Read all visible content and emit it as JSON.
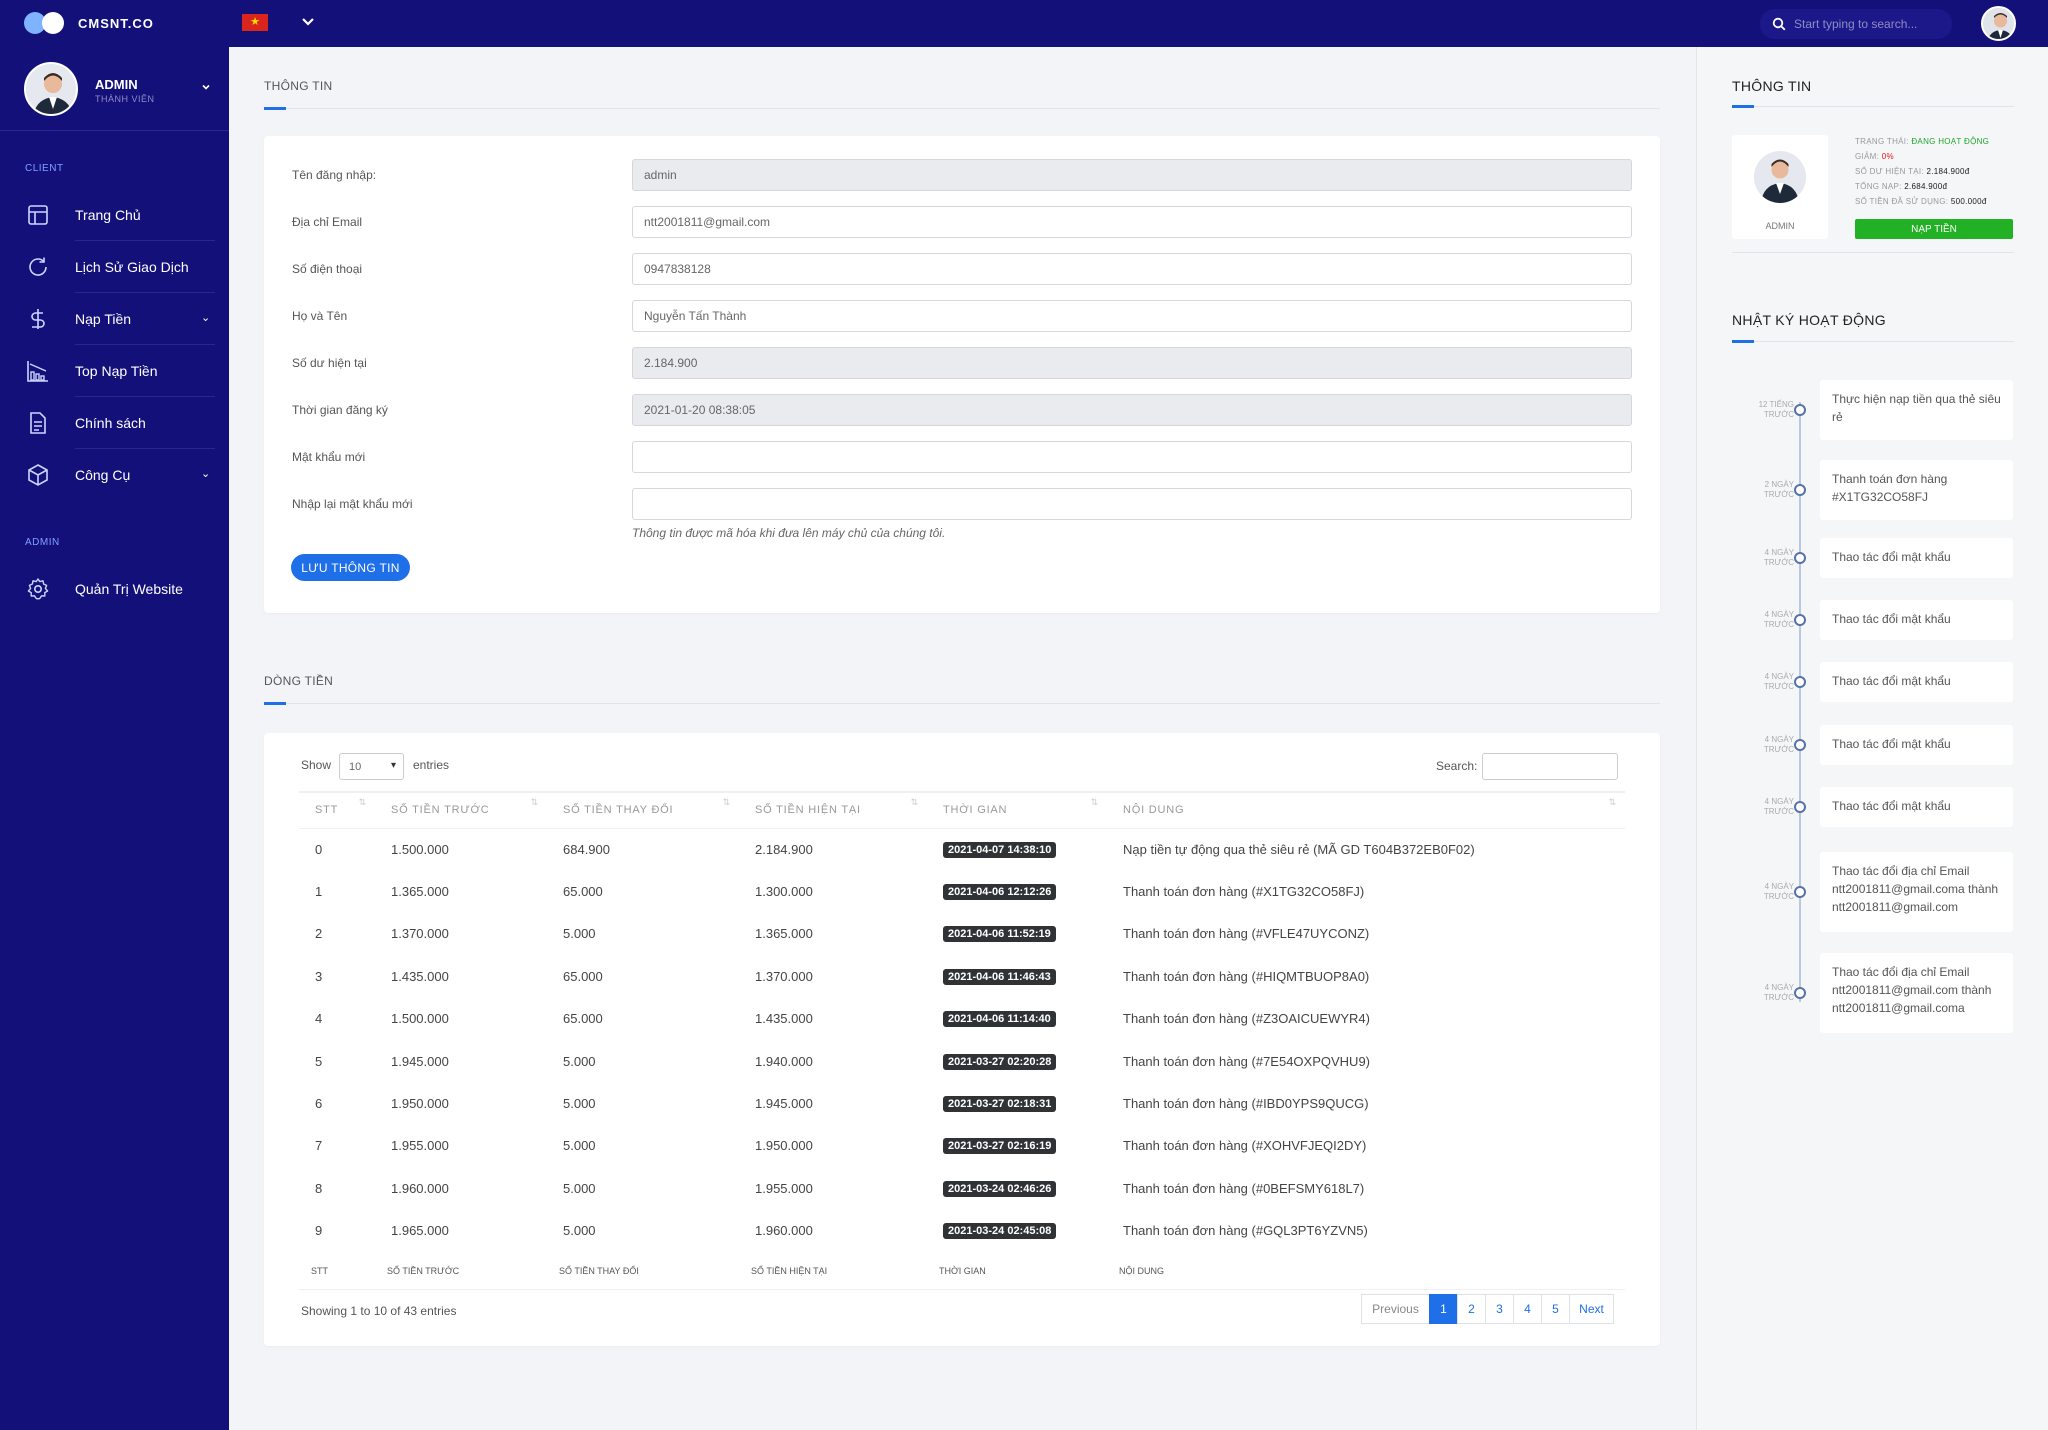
{
  "brand": {
    "name": "CMSNT.CO"
  },
  "topbar": {
    "flag_icon": "vietnam-flag-icon",
    "search_placeholder": "Start typing to search..."
  },
  "sidebar": {
    "user": {
      "name": "ADMIN",
      "role": "THÀNH VIÊN"
    },
    "section_client": "CLIENT",
    "section_admin": "ADMIN",
    "items": [
      {
        "label": "Trang Chủ",
        "icon": "layout-icon"
      },
      {
        "label": "Lịch Sử Giao Dịch",
        "icon": "refresh-icon"
      },
      {
        "label": "Nạp Tiền",
        "icon": "dollar-icon"
      },
      {
        "label": "Top Nạp Tiền",
        "icon": "bar-chart-icon"
      },
      {
        "label": "Chính sách",
        "icon": "document-icon"
      },
      {
        "label": "Công Cụ",
        "icon": "box-icon"
      },
      {
        "label": "Quản Trị Website",
        "icon": "gear-icon"
      }
    ]
  },
  "info": {
    "title": "THÔNG TIN",
    "fields": [
      {
        "label": "Tên đăng nhập:",
        "value": "admin"
      },
      {
        "label": "Địa chỉ Email",
        "value": "ntt2001811@gmail.com"
      },
      {
        "label": "Số điện thoại",
        "value": "0947838128"
      },
      {
        "label": "Họ và Tên",
        "value": "Nguyễn Tấn Thành"
      },
      {
        "label": "Số dư hiện tại",
        "value": "2.184.900"
      },
      {
        "label": "Thời gian đăng ký",
        "value": "2021-01-20 08:38:05"
      },
      {
        "label": "Mật khẩu mới",
        "value": ""
      },
      {
        "label": "Nhập lại mật khẩu mới",
        "value": ""
      }
    ],
    "note": "Thông tin được mã hóa khi đưa lên máy chủ của chúng tôi.",
    "save_label": "LƯU THÔNG TIN"
  },
  "cashflow": {
    "title": "DÒNG TIỀN",
    "show_label": "Show",
    "entries_label": "entries",
    "page_size": "10",
    "search_label": "Search:",
    "headers": [
      "STT",
      "SỐ TIỀN TRƯỚC",
      "SỐ TIỀN THAY ĐỔI",
      "SỐ TIỀN HIỆN TẠI",
      "THỜI GIAN",
      "NỘI DUNG"
    ],
    "rows": [
      {
        "stt": "0",
        "before": "1.500.000",
        "change": "684.900",
        "after": "2.184.900",
        "time": "2021-04-07 14:38:10",
        "content": "Nạp tiền tự động qua thẻ siêu rẻ (MÃ GD T604B372EB0F02)",
        "change_color": "red"
      },
      {
        "stt": "1",
        "before": "1.365.000",
        "change": "65.000",
        "after": "1.300.000",
        "time": "2021-04-06 12:12:26",
        "content": "Thanh toán đơn hàng (#X1TG32CO58FJ)",
        "change_color": "red"
      },
      {
        "stt": "2",
        "before": "1.370.000",
        "change": "5.000",
        "after": "1.365.000",
        "time": "2021-04-06 11:52:19",
        "content": "Thanh toán đơn hàng (#VFLE47UYCONZ)",
        "change_color": "red"
      },
      {
        "stt": "3",
        "before": "1.435.000",
        "change": "65.000",
        "after": "1.370.000",
        "time": "2021-04-06 11:46:43",
        "content": "Thanh toán đơn hàng (#HIQMTBUOP8A0)",
        "change_color": "red"
      },
      {
        "stt": "4",
        "before": "1.500.000",
        "change": "65.000",
        "after": "1.435.000",
        "time": "2021-04-06 11:14:40",
        "content": "Thanh toán đơn hàng (#Z3OAICUEWYR4)",
        "change_color": "red"
      },
      {
        "stt": "5",
        "before": "1.945.000",
        "change": "5.000",
        "after": "1.940.000",
        "time": "2021-03-27 02:20:28",
        "content": "Thanh toán đơn hàng (#7E54OXPQVHU9)",
        "change_color": "red"
      },
      {
        "stt": "6",
        "before": "1.950.000",
        "change": "5.000",
        "after": "1.945.000",
        "time": "2021-03-27 02:18:31",
        "content": "Thanh toán đơn hàng (#IBD0YPS9QUCG)",
        "change_color": "red"
      },
      {
        "stt": "7",
        "before": "1.955.000",
        "change": "5.000",
        "after": "1.950.000",
        "time": "2021-03-27 02:16:19",
        "content": "Thanh toán đơn hàng (#XOHVFJEQI2DY)",
        "change_color": "red"
      },
      {
        "stt": "8",
        "before": "1.960.000",
        "change": "5.000",
        "after": "1.955.000",
        "time": "2021-03-24 02:46:26",
        "content": "Thanh toán đơn hàng (#0BEFSMY618L7)",
        "change_color": "red"
      },
      {
        "stt": "9",
        "before": "1.965.000",
        "change": "5.000",
        "after": "1.960.000",
        "time": "2021-03-24 02:45:08",
        "content": "Thanh toán đơn hàng (#GQL3PT6YZVN5)",
        "change_color": "red"
      }
    ],
    "info_text": "Showing 1 to 10 of 43 entries",
    "pager": {
      "prev": "Previous",
      "pages": [
        "1",
        "2",
        "3",
        "4",
        "5"
      ],
      "next": "Next",
      "active": "1"
    }
  },
  "right": {
    "title": "THÔNG TIN",
    "profile_name": "ADMIN",
    "stats": [
      {
        "label": "TRẠNG THÁI:",
        "value": "ĐANG HOẠT ĐỘNG",
        "tone": "g"
      },
      {
        "label": "GIẢM:",
        "value": "0%",
        "tone": "r"
      },
      {
        "label": "SỐ DƯ HIỆN TẠI:",
        "value": "2.184.900đ",
        "tone": ""
      },
      {
        "label": "TỔNG NẠP:",
        "value": "2.684.900đ",
        "tone": ""
      },
      {
        "label": "SỐ TIỀN ĐÃ SỬ DỤNG:",
        "value": "500.000đ",
        "tone": ""
      }
    ],
    "topup_label": "NẠP TIỀN",
    "log_title": "NHẬT KÝ HOẠT ĐỘNG",
    "log": [
      {
        "time": "12 TIẾNG TRƯỚC",
        "text": "Thực hiện nạp tiền qua thẻ siêu rẻ"
      },
      {
        "time": "2 NGÀY TRƯỚC",
        "text": "Thanh toán đơn hàng #X1TG32CO58FJ"
      },
      {
        "time": "4 NGÀY TRƯỚC",
        "text": "Thao tác đổi mật khẩu"
      },
      {
        "time": "4 NGÀY TRƯỚC",
        "text": "Thao tác đổi mật khẩu"
      },
      {
        "time": "4 NGÀY TRƯỚC",
        "text": "Thao tác đổi mật khẩu"
      },
      {
        "time": "4 NGÀY TRƯỚC",
        "text": "Thao tác đổi mật khẩu"
      },
      {
        "time": "4 NGÀY TRƯỚC",
        "text": "Thao tác đổi mật khẩu"
      },
      {
        "time": "4 NGÀY TRƯỚC",
        "text": "Thao tác đổi địa chỉ Email ntt2001811@gmail.coma thành ntt2001811@gmail.com"
      },
      {
        "time": "4 NGÀY TRƯỚC",
        "text": "Thao tác đổi địa chỉ Email ntt2001811@gmail.com thành ntt2001811@gmail.coma"
      }
    ]
  },
  "colors": {
    "nav": "#14107a",
    "accent": "#1f6fe8",
    "positive": "#1c7c2a",
    "negative": "#e01414",
    "before": "#1a1ad8",
    "topup": "#22b024"
  }
}
